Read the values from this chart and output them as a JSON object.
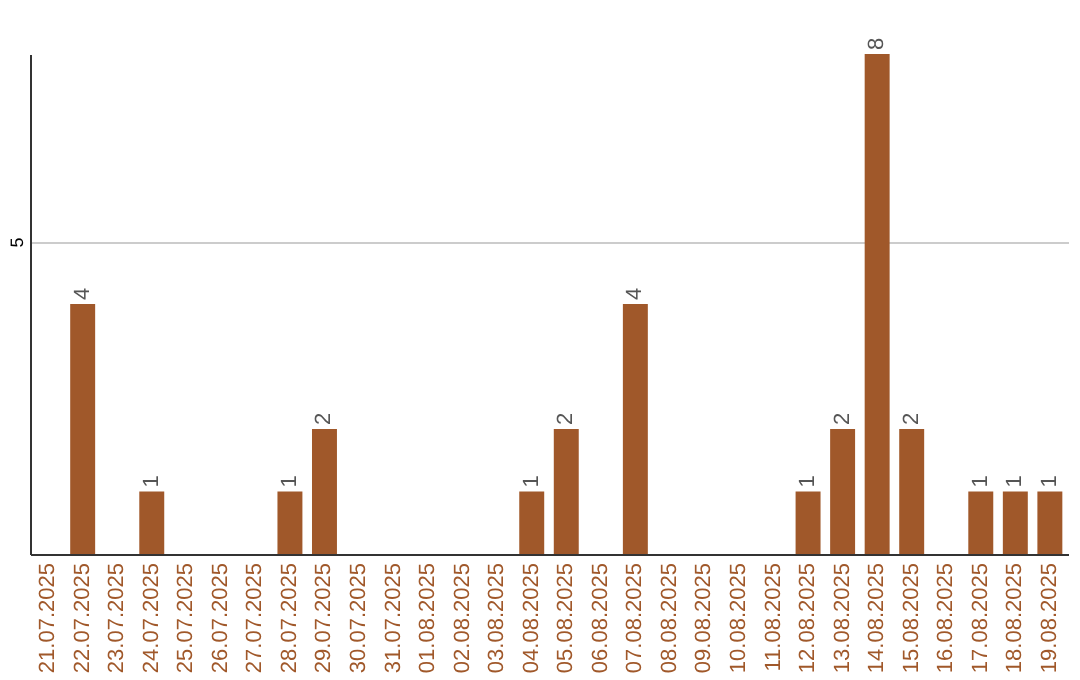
{
  "chart_data": {
    "type": "bar",
    "categories": [
      "21.07.2025",
      "22.07.2025",
      "23.07.2025",
      "24.07.2025",
      "25.07.2025",
      "26.07.2025",
      "27.07.2025",
      "28.07.2025",
      "29.07.2025",
      "30.07.2025",
      "31.07.2025",
      "01.08.2025",
      "02.08.2025",
      "03.08.2025",
      "04.08.2025",
      "05.08.2025",
      "06.08.2025",
      "07.08.2025",
      "08.08.2025",
      "09.08.2025",
      "10.08.2025",
      "11.08.2025",
      "12.08.2025",
      "13.08.2025",
      "14.08.2025",
      "15.08.2025",
      "16.08.2025",
      "17.08.2025",
      "18.08.2025",
      "19.08.2025"
    ],
    "values": [
      0,
      4,
      0,
      1,
      0,
      0,
      0,
      1,
      2,
      0,
      0,
      0,
      0,
      0,
      1,
      2,
      0,
      4,
      0,
      0,
      0,
      0,
      1,
      2,
      8,
      2,
      0,
      1,
      1,
      1
    ],
    "value_labels": [
      null,
      "4",
      null,
      "1",
      null,
      null,
      null,
      "1",
      "2",
      null,
      null,
      null,
      null,
      null,
      "1",
      "2",
      null,
      "4",
      null,
      null,
      null,
      null,
      "1",
      "2",
      "8",
      "2",
      null,
      "1",
      "1",
      "1"
    ],
    "color": "#a0582a",
    "ylim": [
      0,
      8
    ],
    "yticks": [
      5
    ],
    "grid": "y"
  }
}
